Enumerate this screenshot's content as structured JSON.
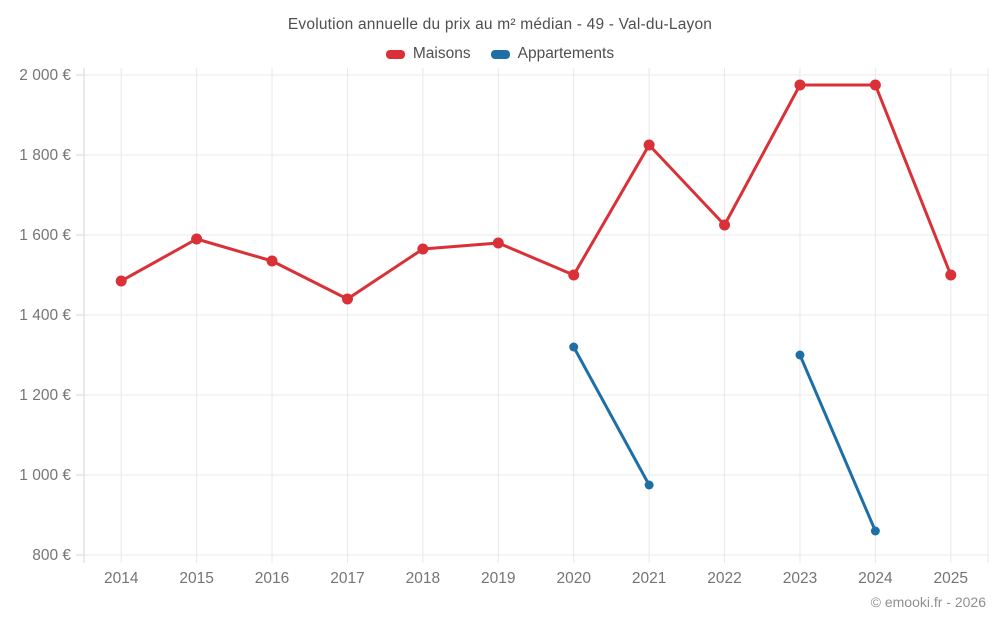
{
  "title": "Evolution annuelle du prix au m² médian - 49 - Val-du-Layon",
  "footer": "© emooki.fr - 2026",
  "legend": [
    {
      "label": "Maisons",
      "color": "#da3138"
    },
    {
      "label": "Appartements",
      "color": "#1d6fa5"
    }
  ],
  "chart_data": {
    "type": "line",
    "title": "Evolution annuelle du prix au m² médian - 49 - Val-du-Layon",
    "categories": [
      "2014",
      "2015",
      "2016",
      "2017",
      "2018",
      "2019",
      "2020",
      "2021",
      "2022",
      "2023",
      "2024",
      "2025"
    ],
    "series": [
      {
        "name": "Maisons",
        "color": "#da3138",
        "values": [
          1485,
          1590,
          1535,
          1440,
          1565,
          1580,
          1500,
          1825,
          1625,
          1975,
          1975,
          1500
        ]
      },
      {
        "name": "Appartements",
        "color": "#1d6fa5",
        "values": [
          null,
          null,
          null,
          null,
          null,
          null,
          1320,
          975,
          null,
          1300,
          860,
          null
        ]
      }
    ],
    "ylim": [
      800,
      2000
    ],
    "ytick_step": 200,
    "ytick_suffix": " €",
    "ytick_labels": [
      "800 €",
      "1 000 €",
      "1 200 €",
      "1 400 €",
      "1 600 €",
      "1 800 €",
      "2 000 €"
    ],
    "xlabel": "",
    "ylabel": "",
    "grid": true,
    "legend_position": "top"
  }
}
